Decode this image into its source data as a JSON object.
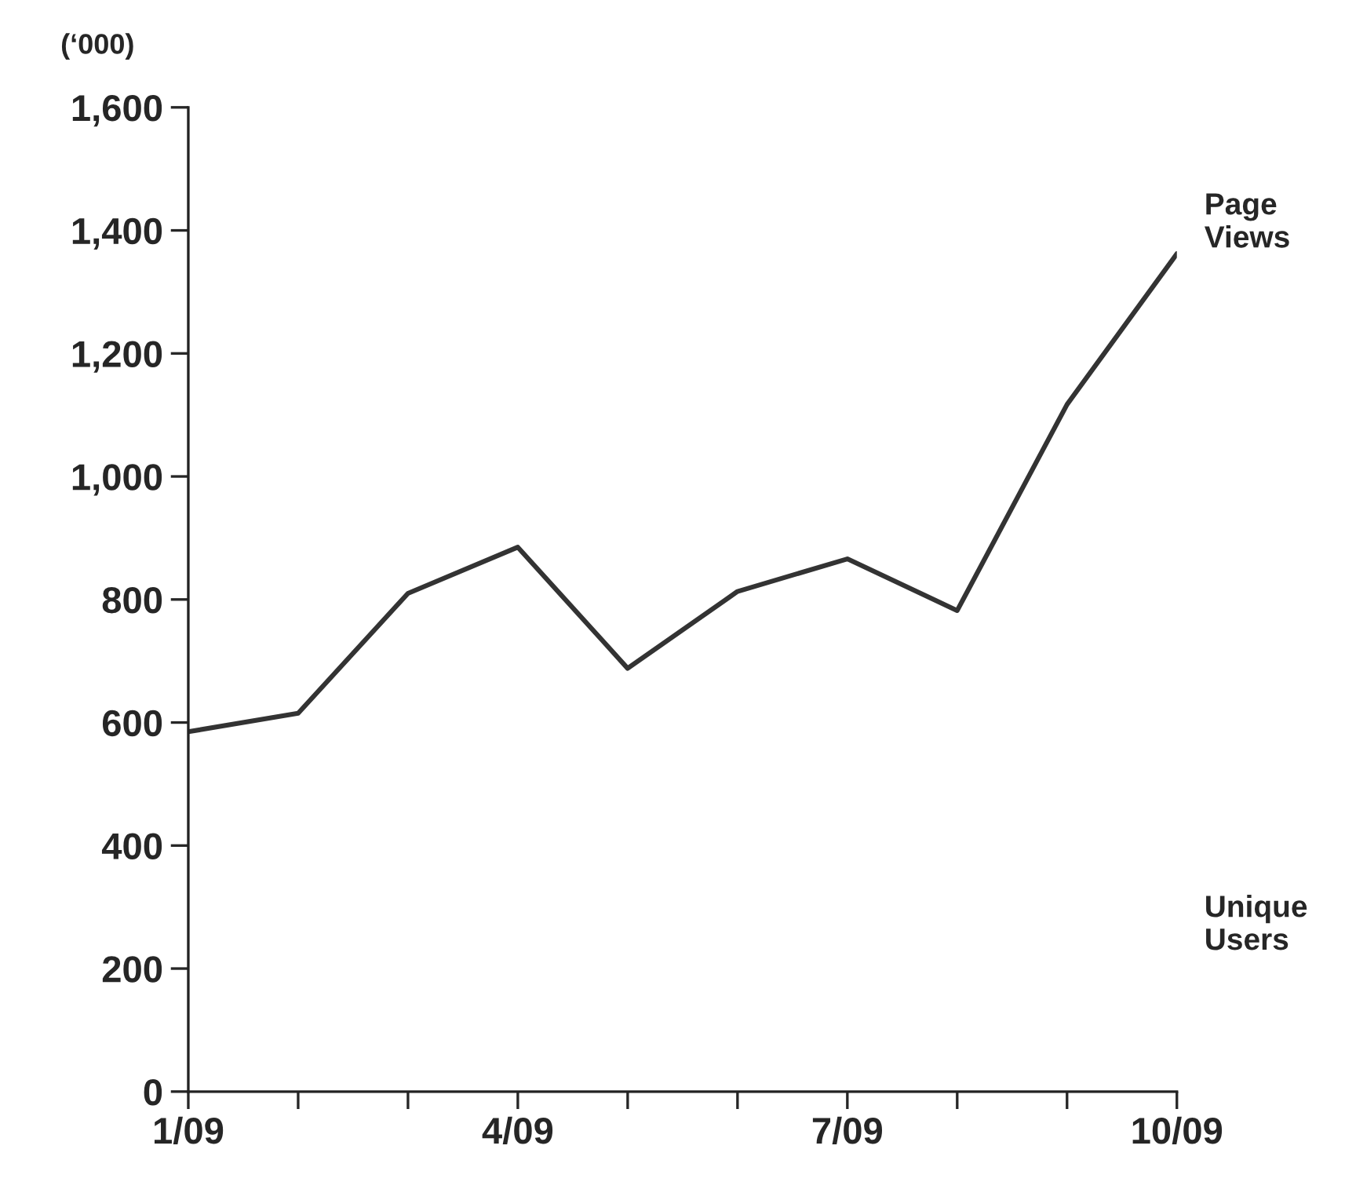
{
  "chart_data": {
    "type": "line",
    "ylabel": "(‘000)",
    "categories": [
      "1/09",
      null,
      null,
      "4/09",
      null,
      null,
      "7/09",
      null,
      null,
      "10/09"
    ],
    "series": [
      {
        "name": "Page Views",
        "color": "#333333",
        "values": [
          585,
          615,
          810,
          885,
          688,
          813,
          866,
          782,
          1117,
          1362
        ]
      }
    ],
    "ylim": [
      0,
      1600
    ],
    "yticks": [
      0,
      {
        "value": 200,
        "label": "200"
      },
      {
        "value": 400,
        "label": "400"
      },
      {
        "value": 600,
        "label": "600"
      },
      {
        "value": 800,
        "label": "800"
      },
      {
        "value": 1000,
        "label": "1,000"
      },
      {
        "value": 1200,
        "label": "1,200"
      },
      {
        "value": 1400,
        "label": "1,400"
      },
      {
        "value": 1600,
        "label": "1,600"
      }
    ],
    "annotations": [
      "Unique Users"
    ],
    "grid": false,
    "legend": false,
    "marker": "none",
    "line_style": "solid"
  }
}
